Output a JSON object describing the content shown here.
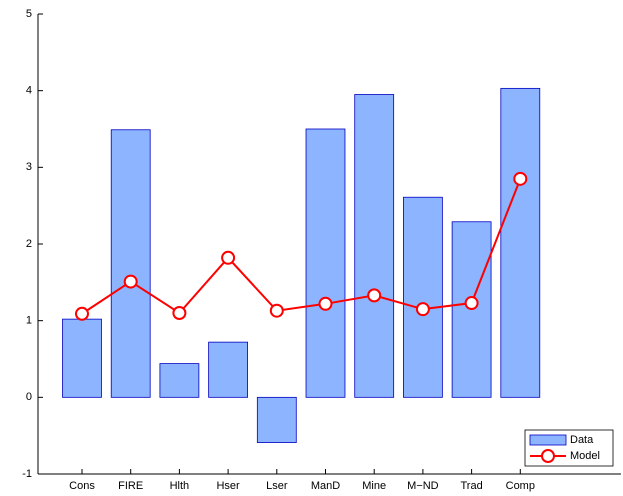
{
  "chart_data": {
    "type": "bar",
    "categories": [
      "Cons",
      "FIRE",
      "Hlth",
      "Hser",
      "Lser",
      "ManD",
      "Mine",
      "M−ND",
      "Trad",
      "Comp"
    ],
    "series": [
      {
        "name": "Data",
        "type": "bar",
        "color": "#8cb4ff",
        "values": [
          1.02,
          3.49,
          0.44,
          0.72,
          -0.59,
          3.5,
          3.95,
          2.61,
          2.29,
          4.03
        ]
      },
      {
        "name": "Model",
        "type": "line",
        "color": "#ff0000",
        "values": [
          1.09,
          1.51,
          1.1,
          1.82,
          1.13,
          1.22,
          1.33,
          1.15,
          1.23,
          2.85
        ]
      }
    ],
    "ylim": [
      -1,
      5
    ],
    "yticks": [
      -1,
      0,
      1,
      2,
      3,
      4,
      5
    ],
    "grid": false,
    "legend": "lower right"
  }
}
